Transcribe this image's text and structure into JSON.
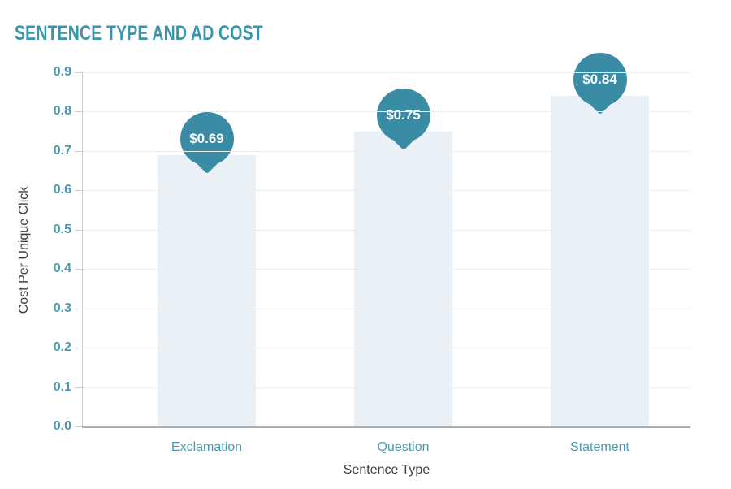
{
  "chart_data": {
    "type": "bar",
    "title": "SENTENCE TYPE AND AD COST",
    "categories": [
      "Exclamation",
      "Question",
      "Statement"
    ],
    "values": [
      0.69,
      0.75,
      0.84
    ],
    "data_labels": [
      "$0.69",
      "$0.75",
      "$0.84"
    ],
    "xlabel": "Sentence Type",
    "ylabel": "Cost Per Unique Click",
    "ylim": [
      0,
      0.9
    ],
    "ytick_interval": 0.1,
    "yticks": [
      "0.9",
      "0.8",
      "0.7",
      "0.6",
      "0.5",
      "0.4",
      "0.3",
      "0.2",
      "0.1",
      "0.0"
    ],
    "grid": true,
    "legend": "none",
    "colors": {
      "accent": "#3a8ca4",
      "title_color": "#3a95ab",
      "tick_label_color": "#4a98ad",
      "bar_fill": "#e9f1f6",
      "gridline_color": "#ececec",
      "axis_line_color": "#cccccc",
      "axis_title_color": "#3e3e3e",
      "bubble_text": "#ffffff"
    }
  }
}
